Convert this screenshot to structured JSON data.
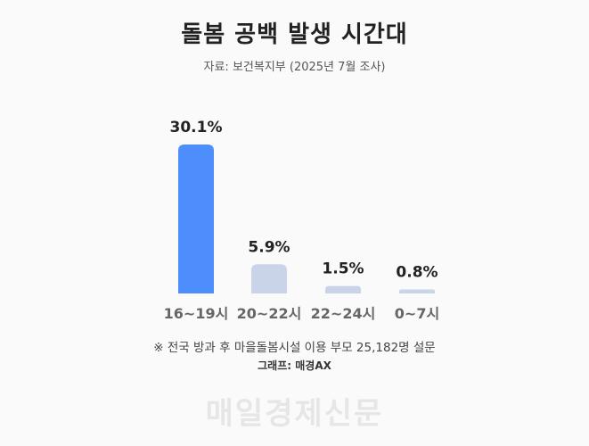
{
  "title": "돌봄 공백 발생 시간대",
  "subtitle": "자료: 보건복지부 (2025년 7월 조사)",
  "note": "※ 전국 방과 후 마을돌봄시설 이용 부모 25,182명 설문",
  "credit": "그래프: 매경AX",
  "watermark": "매일경제신문",
  "colors": {
    "highlight": "#4d8efc",
    "muted": "#c9d4e8",
    "label": "#666666"
  },
  "chart_data": {
    "type": "bar",
    "categories": [
      "16~19시",
      "20~22시",
      "22~24시",
      "0~7시"
    ],
    "values": [
      30.1,
      5.9,
      1.5,
      0.8
    ],
    "value_labels": [
      "30.1%",
      "5.9%",
      "1.5%",
      "0.8%"
    ],
    "highlight_index": 0,
    "title": "돌봄 공백 발생 시간대",
    "xlabel": "",
    "ylabel": "",
    "ylim": [
      0,
      30.1
    ],
    "grid": false,
    "legend": "none"
  }
}
